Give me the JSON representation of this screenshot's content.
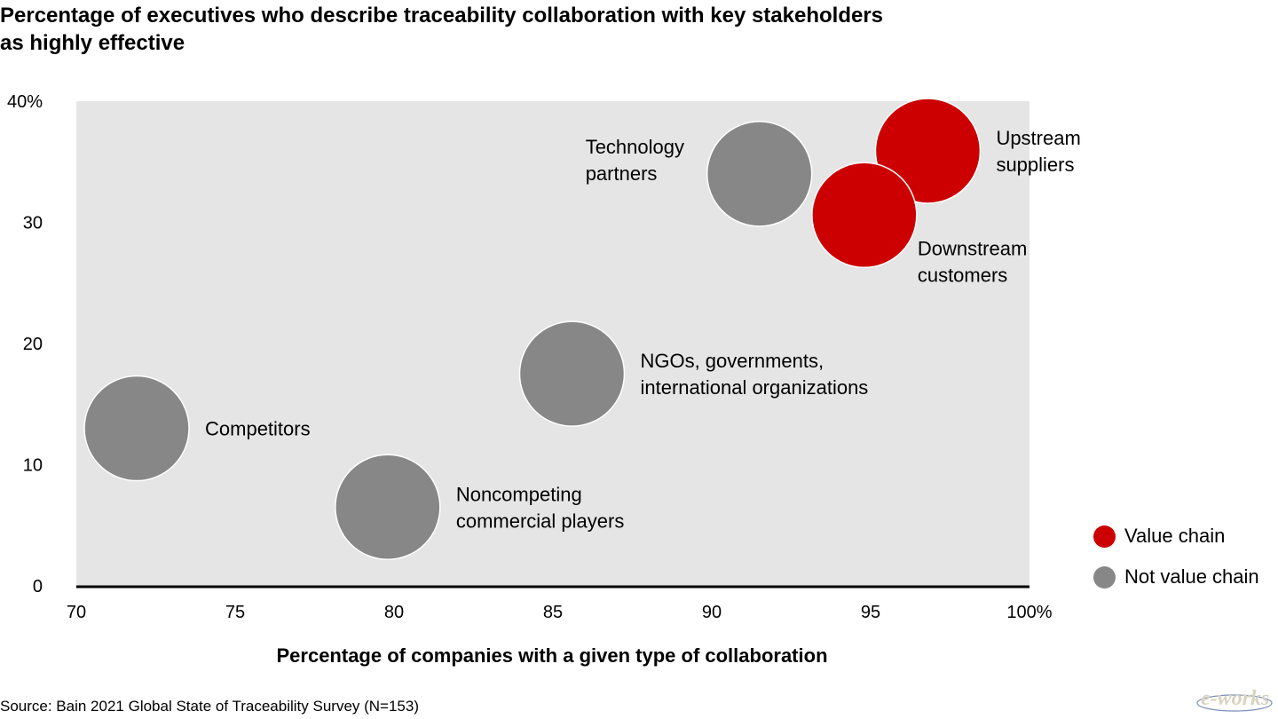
{
  "chart_data": {
    "type": "scatter",
    "title_lines": [
      "Percentage of executives who describe traceability collaboration with key stakeholders",
      "as highly effective"
    ],
    "xlabel": "Percentage of companies with a given type of collaboration",
    "ylabel": "",
    "xlim": [
      70,
      100
    ],
    "ylim": [
      0,
      40
    ],
    "x_ticks": [
      {
        "value": 70,
        "label": "70"
      },
      {
        "value": 75,
        "label": "75"
      },
      {
        "value": 80,
        "label": "80"
      },
      {
        "value": 85,
        "label": "85"
      },
      {
        "value": 90,
        "label": "90"
      },
      {
        "value": 95,
        "label": "95"
      },
      {
        "value": 100,
        "label": "100%"
      }
    ],
    "y_ticks": [
      {
        "value": 0,
        "label": "0"
      },
      {
        "value": 10,
        "label": "10"
      },
      {
        "value": 20,
        "label": "20"
      },
      {
        "value": 30,
        "label": "30"
      },
      {
        "value": 40,
        "label": "40%"
      }
    ],
    "grid": false,
    "legend_position": "bottom-right",
    "series": [
      {
        "name": "Value chain",
        "color": "#cc0000",
        "points": [
          {
            "label_lines": [
              "Upstream",
              "suppliers"
            ],
            "x": 96.8,
            "y": 35.9,
            "label_side": "right"
          },
          {
            "label_lines": [
              "Downstream",
              "customers"
            ],
            "x": 94.8,
            "y": 30.6,
            "label_side": "below-right"
          }
        ]
      },
      {
        "name": "Not value chain",
        "color": "#878787",
        "points": [
          {
            "label_lines": [
              "Technology",
              "partners"
            ],
            "x": 91.5,
            "y": 34.0,
            "label_side": "left"
          },
          {
            "label_lines": [
              "NGOs, governments,",
              "international organizations"
            ],
            "x": 85.6,
            "y": 17.5,
            "label_side": "right"
          },
          {
            "label_lines": [
              "Competitors"
            ],
            "x": 71.9,
            "y": 13.0,
            "label_side": "right"
          },
          {
            "label_lines": [
              "Noncompeting",
              "commercial players"
            ],
            "x": 79.8,
            "y": 6.5,
            "label_side": "right"
          }
        ]
      }
    ]
  },
  "source": "Source: Bain 2021 Global State of Traceability Survey (N=153)",
  "logo_text": "e-works",
  "colors": {
    "plot_background": "#e5e5e5",
    "axis": "#000000",
    "value_chain": "#cc0000",
    "not_value_chain": "#878787"
  }
}
